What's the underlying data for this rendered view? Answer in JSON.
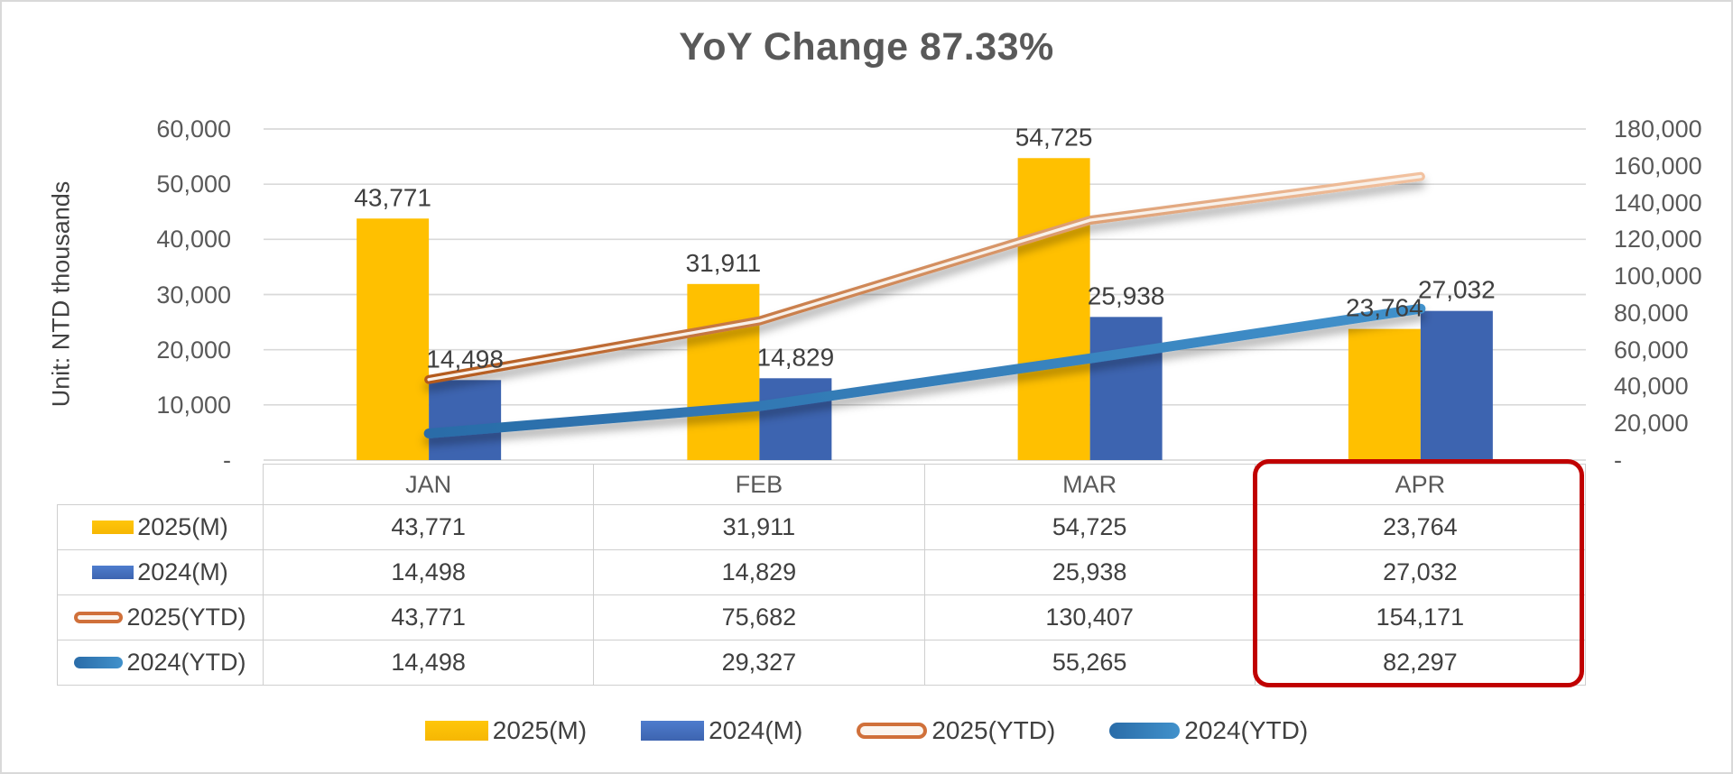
{
  "chart_data": {
    "type": "combo-bar-line",
    "title": "YoY Change 87.33%",
    "unit_label": "Unit: NTD thousands",
    "categories": [
      "JAN",
      "FEB",
      "MAR",
      "APR"
    ],
    "left_axis": {
      "min": 0,
      "max": 60000,
      "tick_values": [
        60000,
        50000,
        40000,
        30000,
        20000,
        10000,
        0
      ],
      "tick_labels": [
        "60,000",
        "50,000",
        "40,000",
        "30,000",
        "20,000",
        "10,000",
        "-"
      ]
    },
    "right_axis": {
      "min": 0,
      "max": 180000,
      "tick_values": [
        180000,
        160000,
        140000,
        120000,
        100000,
        80000,
        60000,
        40000,
        20000,
        0
      ],
      "tick_labels": [
        "180,000",
        "160,000",
        "140,000",
        "120,000",
        "100,000",
        "80,000",
        "60,000",
        "40,000",
        "20,000",
        "-"
      ]
    },
    "bar_series": [
      {
        "name": "2025(M)",
        "axis": "left",
        "color": "#FFC000",
        "values": [
          43771,
          31911,
          54725,
          23764
        ],
        "value_labels": [
          "43,771",
          "31,911",
          "54,725",
          "23,764"
        ]
      },
      {
        "name": "2024(M)",
        "axis": "left",
        "color": "#4472C4",
        "values": [
          14498,
          14829,
          25938,
          27032
        ],
        "value_labels": [
          "14,498",
          "14,829",
          "25,938",
          "27,032"
        ]
      }
    ],
    "line_series": [
      {
        "name": "2025(YTD)",
        "axis": "right",
        "style": "outlined",
        "color_start": "#B3591D",
        "color_end": "#F2C2A0",
        "values": [
          43771,
          75682,
          130407,
          154171
        ],
        "value_labels": [
          "43,771",
          "75,682",
          "130,407",
          "154,171"
        ]
      },
      {
        "name": "2024(YTD)",
        "axis": "right",
        "style": "solid",
        "color_start": "#2A6CA8",
        "color_end": "#4191CB",
        "values": [
          14498,
          29327,
          55265,
          82297
        ],
        "value_labels": [
          "14,498",
          "29,327",
          "55,265",
          "82,297"
        ]
      }
    ],
    "gridlines": true,
    "gridline_color": "#D9D9D9",
    "table": {
      "column_headers": [
        "JAN",
        "FEB",
        "MAR",
        "APR"
      ],
      "rows": [
        {
          "key": "2025(M)",
          "swatch": "bar-yellow",
          "values": [
            "43,771",
            "31,911",
            "54,725",
            "23,764"
          ]
        },
        {
          "key": "2024(M)",
          "swatch": "bar-blue",
          "values": [
            "14,498",
            "14,829",
            "25,938",
            "27,032"
          ]
        },
        {
          "key": "2025(YTD)",
          "swatch": "line-orange",
          "values": [
            "43,771",
            "75,682",
            "130,407",
            "154,171"
          ]
        },
        {
          "key": "2024(YTD)",
          "swatch": "line-blue",
          "values": [
            "14,498",
            "29,327",
            "55,265",
            "82,297"
          ]
        }
      ],
      "highlight": {
        "column": "APR",
        "color": "#C00000"
      }
    },
    "legend": {
      "position": "bottom",
      "items": [
        {
          "label": "2025(M)",
          "swatch": "bar-yellow"
        },
        {
          "label": "2024(M)",
          "swatch": "bar-blue"
        },
        {
          "label": "2025(YTD)",
          "swatch": "line-orange"
        },
        {
          "label": "2024(YTD)",
          "swatch": "line-blue"
        }
      ]
    }
  }
}
